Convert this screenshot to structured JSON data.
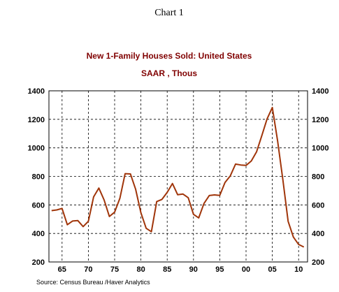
{
  "caption": "Chart 1",
  "source": "Source:  Census Bureau /Haver Analytics",
  "chart_data": {
    "type": "line",
    "title": "New 1-Family Houses Sold: United States",
    "subtitle": "SAAR , Thous",
    "xlabel": "",
    "ylabel": "",
    "xlim": [
      1962.5,
      2011.7
    ],
    "ylim": [
      200,
      1400
    ],
    "x_ticks": [
      1965,
      1970,
      1975,
      1980,
      1985,
      1990,
      1995,
      2000,
      2005,
      2010
    ],
    "x_tick_labels": [
      "65",
      "70",
      "75",
      "80",
      "85",
      "90",
      "95",
      "00",
      "05",
      "10"
    ],
    "y_ticks": [
      200,
      400,
      600,
      800,
      1000,
      1200,
      1400
    ],
    "y_tick_labels": [
      "200",
      "400",
      "600",
      "800",
      "1000",
      "1200",
      "1400"
    ],
    "grid": true,
    "line_color": "#a0350a",
    "series": [
      {
        "x": [
          1963,
          1964,
          1965,
          1966,
          1967,
          1968,
          1969,
          1970,
          1971,
          1972,
          1973,
          1974,
          1975,
          1976,
          1977,
          1978,
          1979,
          1980,
          1981,
          1982,
          1983,
          1984,
          1985,
          1986,
          1987,
          1988,
          1989,
          1990,
          1991,
          1992,
          1993,
          1994,
          1995,
          1996,
          1997,
          1998,
          1999,
          2000,
          2001,
          2002,
          2003,
          2004,
          2005,
          2006,
          2007,
          2008,
          2009,
          2010,
          2011
        ],
        "values": [
          560,
          565,
          575,
          461,
          487,
          490,
          448,
          485,
          656,
          718,
          634,
          519,
          549,
          646,
          819,
          817,
          709,
          545,
          436,
          412,
          623,
          639,
          688,
          750,
          671,
          676,
          650,
          534,
          509,
          610,
          666,
          670,
          667,
          757,
          804,
          886,
          880,
          877,
          908,
          973,
          1086,
          1203,
          1283,
          1051,
          776,
          485,
          375,
          323,
          305
        ]
      }
    ]
  }
}
